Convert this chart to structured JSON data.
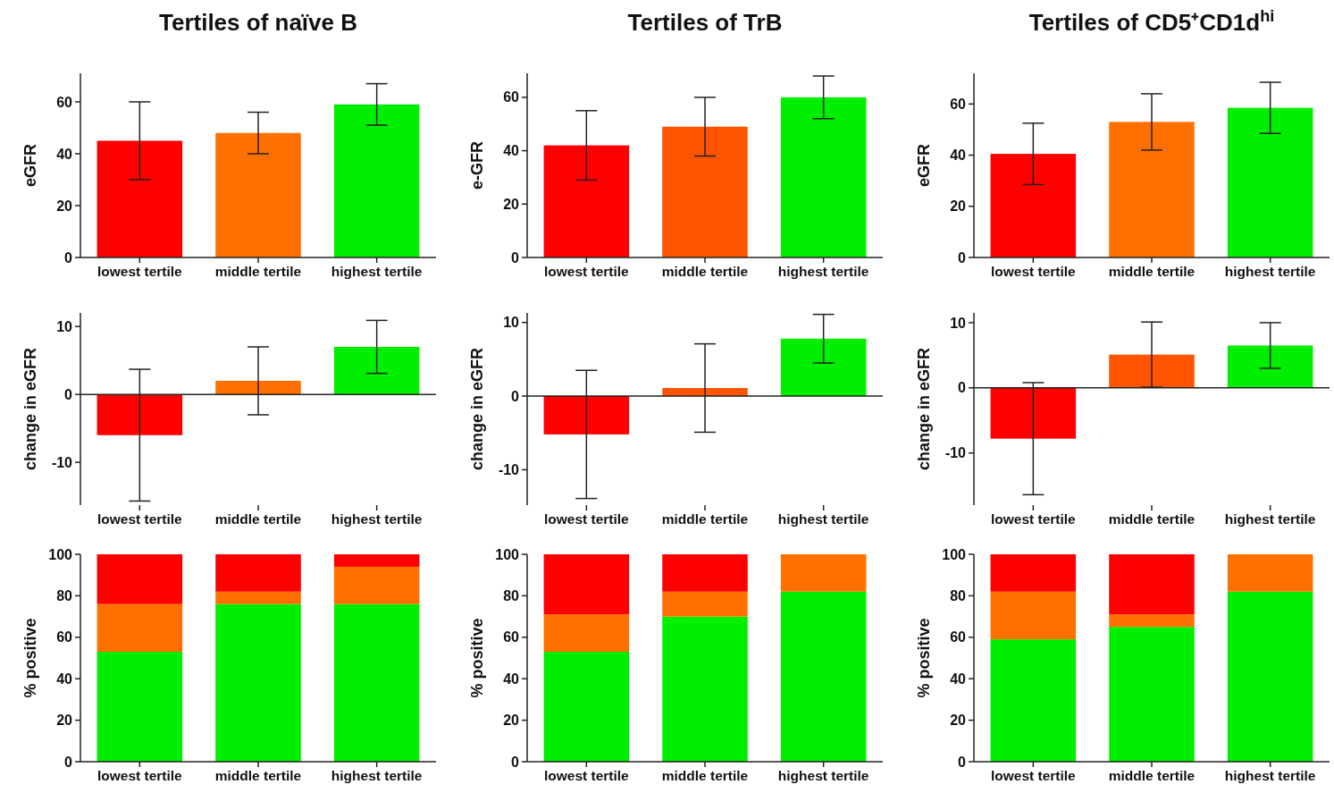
{
  "chart_data": [
    {
      "type": "bar",
      "title": "Tertiles of naïve B",
      "ylabel": "eGFR",
      "categories": [
        "lowest tertile",
        "middle tertile",
        "highest tertile"
      ],
      "values": [
        45,
        48,
        59
      ],
      "errors": [
        15,
        8,
        8
      ],
      "colors": [
        "#ff0000",
        "#ff7000",
        "#00ee00"
      ],
      "ylim": [
        0,
        71
      ],
      "yticks": [
        0,
        20,
        40,
        60
      ]
    },
    {
      "type": "bar",
      "title": "Tertiles of TrB",
      "ylabel": "e-GFR",
      "categories": [
        "lowest tertile",
        "middle tertile",
        "highest tertile"
      ],
      "values": [
        42,
        49,
        60
      ],
      "errors": [
        13,
        11,
        8
      ],
      "colors": [
        "#ff0000",
        "#ff5500",
        "#00ee00"
      ],
      "ylim": [
        0,
        69
      ],
      "yticks": [
        0,
        20,
        40,
        60
      ]
    },
    {
      "type": "bar",
      "title": "Tertiles of CD5⁺CD1d$^{hi}$",
      "ylabel": "eGFR",
      "categories": [
        "lowest tertile",
        "middle tertile",
        "highest tertile"
      ],
      "values": [
        40.5,
        53,
        58.5
      ],
      "errors": [
        12,
        11,
        10
      ],
      "colors": [
        "#ff0000",
        "#ff7000",
        "#00ee00"
      ],
      "ylim": [
        0,
        72
      ],
      "yticks": [
        0,
        20,
        40,
        60
      ]
    },
    {
      "type": "bar",
      "ylabel": "change in eGFR",
      "categories": [
        "lowest tertile",
        "middle tertile",
        "highest tertile"
      ],
      "values": [
        -6,
        2,
        7
      ],
      "errors": [
        9.7,
        5,
        3.9
      ],
      "colors": [
        "#ff0000",
        "#ff7000",
        "#00ee00"
      ],
      "ylim": [
        -16.3,
        12
      ],
      "yticks": [
        -10,
        0,
        10
      ]
    },
    {
      "type": "bar",
      "ylabel": "change in eGFR",
      "categories": [
        "lowest tertile",
        "middle tertile",
        "highest tertile"
      ],
      "values": [
        -5.2,
        1.1,
        7.8
      ],
      "errors": [
        8.7,
        6,
        3.3
      ],
      "colors": [
        "#ff0000",
        "#ff5500",
        "#00ee00"
      ],
      "ylim": [
        -14.8,
        11.3
      ],
      "yticks": [
        -10,
        0,
        10
      ]
    },
    {
      "type": "bar",
      "ylabel": "change in eGFR",
      "categories": [
        "lowest tertile",
        "middle tertile",
        "highest tertile"
      ],
      "values": [
        -7.8,
        5.1,
        6.5
      ],
      "errors": [
        8.6,
        5,
        3.5
      ],
      "colors": [
        "#ff0000",
        "#ff5500",
        "#00ee00"
      ],
      "ylim": [
        -18,
        11.5
      ],
      "yticks": [
        -10,
        0,
        10
      ]
    },
    {
      "type": "bar",
      "stacked": true,
      "ylabel": "% positive",
      "categories": [
        "lowest tertile",
        "middle tertile",
        "highest tertile"
      ],
      "series": [
        {
          "color": "#00ee00",
          "values": [
            53,
            76,
            76
          ]
        },
        {
          "color": "#ff7000",
          "values": [
            23,
            6,
            18
          ]
        },
        {
          "color": "#ff0000",
          "values": [
            24,
            18,
            6
          ]
        }
      ],
      "ylim": [
        0,
        100
      ],
      "yticks": [
        0,
        20,
        40,
        60,
        80,
        100
      ]
    },
    {
      "type": "bar",
      "stacked": true,
      "ylabel": "% positive",
      "categories": [
        "lowest tertile",
        "middle tertile",
        "highest tertile"
      ],
      "series": [
        {
          "color": "#00ee00",
          "values": [
            53,
            70,
            82
          ]
        },
        {
          "color": "#ff7000",
          "values": [
            18,
            12,
            18
          ]
        },
        {
          "color": "#ff0000",
          "values": [
            29,
            18,
            0
          ]
        }
      ],
      "ylim": [
        0,
        100
      ],
      "yticks": [
        0,
        20,
        40,
        60,
        80,
        100
      ]
    },
    {
      "type": "bar",
      "stacked": true,
      "ylabel": "% positive",
      "categories": [
        "lowest tertile",
        "middle tertile",
        "highest tertile"
      ],
      "series": [
        {
          "color": "#00ee00",
          "values": [
            59,
            65,
            82
          ]
        },
        {
          "color": "#ff7000",
          "values": [
            23,
            6,
            18
          ]
        },
        {
          "color": "#ff0000",
          "values": [
            18,
            29,
            0
          ]
        }
      ],
      "ylim": [
        0,
        100
      ],
      "yticks": [
        0,
        20,
        40,
        60,
        80,
        100
      ]
    }
  ]
}
